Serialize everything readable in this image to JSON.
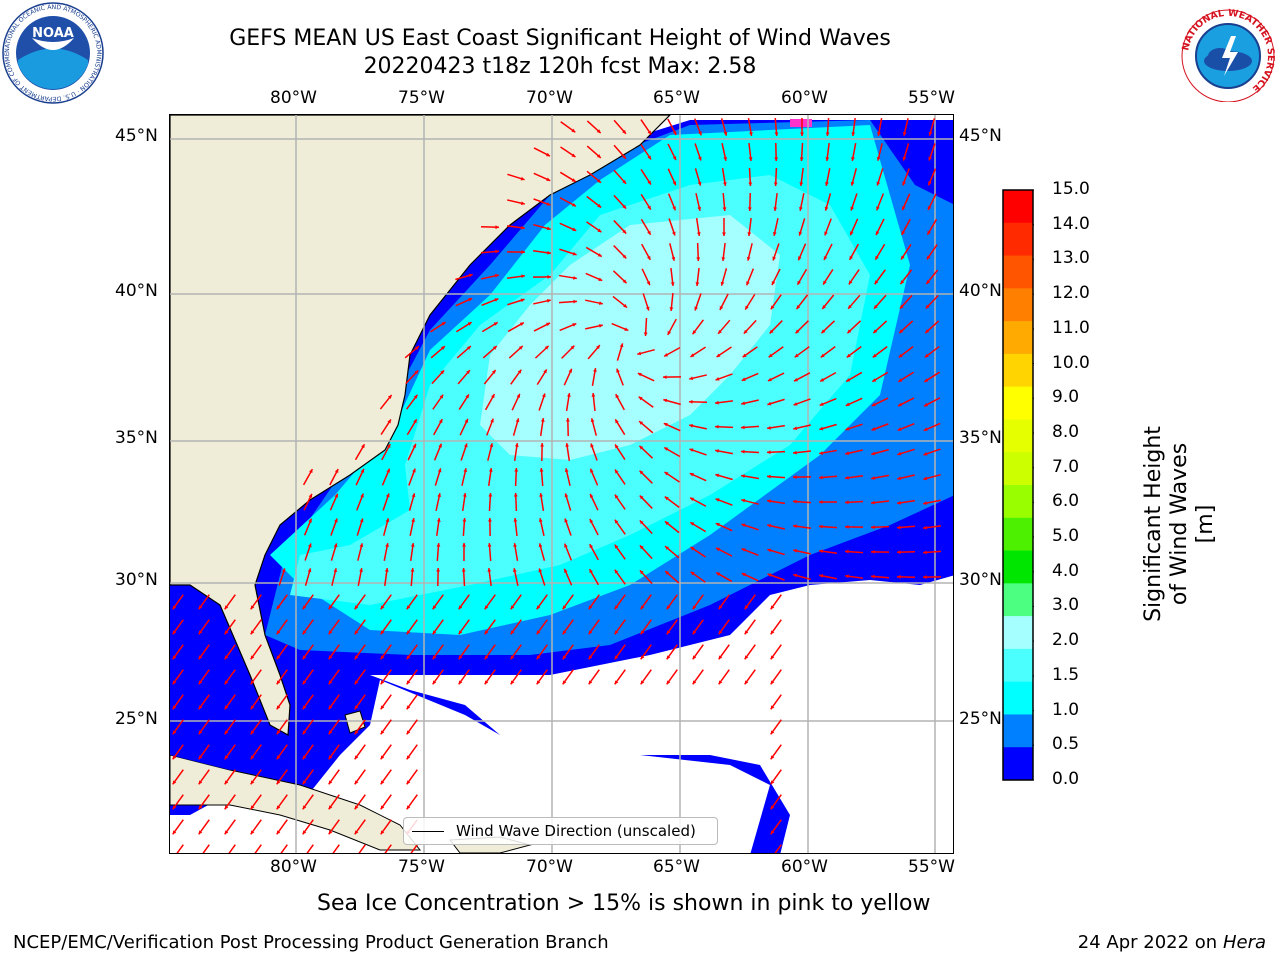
{
  "title": {
    "line1": "GEFS MEAN US East Coast Significant Height of Wind Waves",
    "line2": "20220423 t18z 120h fcst   Max: 2.58"
  },
  "map": {
    "lon_labels": [
      "80°W",
      "75°W",
      "70°W",
      "65°W",
      "60°W",
      "55°W"
    ],
    "lat_labels": [
      "45°N",
      "40°N",
      "35°N",
      "30°N",
      "25°N"
    ],
    "legend_text": "Wind Wave Direction (unscaled)",
    "colors": {
      "land": "#efedd8",
      "ocean_low": "#0000ff",
      "ocean_mid": "#0080ff",
      "ocean_high": "#00ffff",
      "ocean_peak": "#a6ffff",
      "arrows": "#ff0000",
      "gridlines": "#b3b3b3"
    }
  },
  "colorbar": {
    "title": "Significant Height of Wind Waves [m]",
    "tick_labels": [
      "15.0",
      "14.0",
      "13.0",
      "12.0",
      "11.0",
      "10.0",
      "9.0",
      "8.0",
      "7.0",
      "6.0",
      "5.0",
      "4.0",
      "3.0",
      "2.0",
      "1.5",
      "1.0",
      "0.5",
      "0.0"
    ],
    "colors": [
      "#ff0000",
      "#ff2a00",
      "#ff5500",
      "#ff8000",
      "#ffaa00",
      "#ffd400",
      "#ffff00",
      "#e6ff00",
      "#ccff00",
      "#99ff00",
      "#4cf000",
      "#00e600",
      "#4cff80",
      "#a6ffff",
      "#4cffff",
      "#00ffff",
      "#0080ff",
      "#0000ff"
    ]
  },
  "ice_note": "Sea Ice Concentration > 15% is shown in pink to yellow",
  "footer": {
    "left": "NCEP/EMC/Verification Post Processing Product Generation Branch",
    "right_date": "24 Apr 2022 on ",
    "right_machine": "Hera"
  },
  "logos": {
    "noaa_text": "NOAA",
    "noaa_ring_text": "NATIONAL OCEANIC AND ATMOSPHERIC ADMINISTRATION · U.S. DEPARTMENT OF COMMERCE",
    "nws_ring_text": "NATIONAL WEATHER SERVICE"
  }
}
